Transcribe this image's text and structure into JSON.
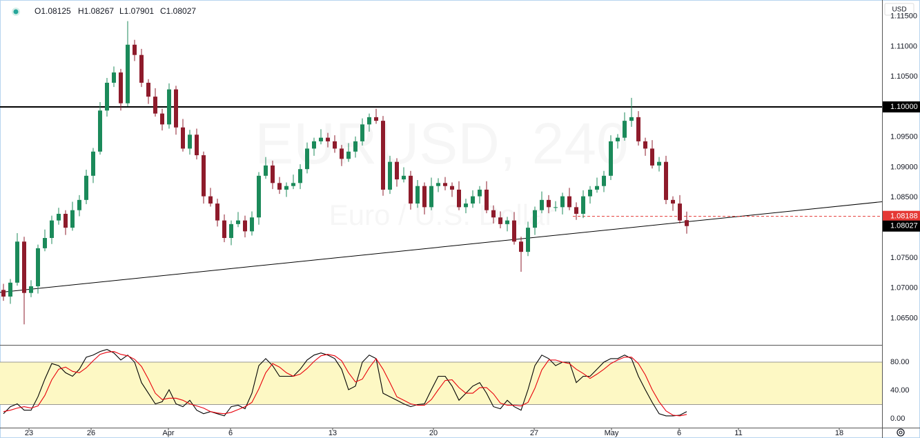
{
  "header": {
    "ohlc": [
      "O1.08125",
      "H1.08267",
      "L1.07901",
      "C1.08027"
    ]
  },
  "axis_currency": "USD",
  "watermark": {
    "symbol": "EURUSD, 240",
    "description": "Euro / U.S. Dollar"
  },
  "chart_data": [
    {
      "type": "candlestick",
      "up_color": "#1b8a5a",
      "down_color": "#8e1b2b",
      "xlim": [
        -0.5,
        127.3
      ],
      "ylim": [
        1.0606,
        1.1177
      ],
      "yticks": [
        {
          "value": 1.065,
          "label": "1.06500"
        },
        {
          "value": 1.07,
          "label": "1.07000"
        },
        {
          "value": 1.075,
          "label": "1.07500"
        },
        {
          "value": 1.08,
          "label": "1.08000"
        },
        {
          "value": 1.085,
          "label": "1.08500"
        },
        {
          "value": 1.09,
          "label": "1.09000"
        },
        {
          "value": 1.095,
          "label": "1.09500"
        },
        {
          "value": 1.1,
          "label": "1.10000"
        },
        {
          "value": 1.105,
          "label": "1.10500"
        },
        {
          "value": 1.11,
          "label": "1.11000"
        },
        {
          "value": 1.115,
          "label": "1.11500"
        }
      ],
      "open": [
        1.0697,
        1.0686,
        1.0709,
        1.0777,
        1.0692,
        1.0703,
        1.0766,
        1.0783,
        1.0812,
        1.0823,
        1.08,
        1.0829,
        1.0846,
        1.0886,
        1.0926,
        1.0994,
        1.104,
        1.1057,
        1.1006,
        1.1103,
        1.1086,
        1.104,
        1.1017,
        1.0989,
        1.0971,
        1.1029,
        1.0966,
        1.0931,
        1.0954,
        1.092,
        1.0852,
        1.084,
        1.0812,
        1.0783,
        1.0806,
        1.0812,
        1.0794,
        1.0817,
        1.0886,
        1.0903,
        1.0874,
        1.0863,
        1.0869,
        1.0874,
        1.0897,
        1.0931,
        1.0943,
        1.0949,
        1.0943,
        1.0931,
        1.0914,
        1.0926,
        1.0943,
        1.0971,
        1.0983,
        1.0977,
        1.0863,
        1.0909,
        1.088,
        1.0886,
        1.084,
        1.0869,
        1.0834,
        1.0869,
        1.0874,
        1.0869,
        1.0863,
        1.0834,
        1.084,
        1.0852,
        1.0863,
        1.0829,
        1.0817,
        1.0806,
        1.0812,
        1.0777,
        1.076,
        1.08,
        1.0829,
        1.0846,
        1.0834,
        1.0834,
        1.0852,
        1.0834,
        1.0823,
        1.0852,
        1.0863,
        1.0869,
        1.0886,
        1.0943,
        1.0949,
        1.0977,
        1.0983,
        1.0943,
        1.0931,
        1.0903,
        1.0909,
        1.0846,
        1.084,
        1.08125
      ],
      "high": [
        1.0707,
        1.0715,
        1.0791,
        1.0785,
        1.0713,
        1.0772,
        1.0797,
        1.082,
        1.0833,
        1.0829,
        1.0843,
        1.0854,
        1.0896,
        1.0932,
        1.1008,
        1.1048,
        1.1067,
        1.1063,
        1.1142,
        1.1111,
        1.1096,
        1.1046,
        1.1031,
        1.0997,
        1.1039,
        1.1035,
        1.098,
        1.0962,
        1.0964,
        1.0926,
        1.0866,
        1.0848,
        1.0822,
        1.0812,
        1.0826,
        1.082,
        1.0827,
        1.0892,
        1.0917,
        1.0911,
        1.0884,
        1.0875,
        1.0888,
        1.0905,
        1.0941,
        1.0949,
        1.0963,
        1.0957,
        1.0953,
        1.0937,
        1.094,
        1.0951,
        1.0981,
        1.0989,
        1.0997,
        1.0985,
        1.0919,
        1.0915,
        1.09,
        1.0894,
        1.0879,
        1.0875,
        1.0883,
        1.0882,
        1.0884,
        1.0875,
        1.0877,
        1.0848,
        1.0862,
        1.0869,
        1.0877,
        1.0837,
        1.0827,
        1.0818,
        1.0826,
        1.0785,
        1.081,
        1.0835,
        1.086,
        1.0854,
        1.0844,
        1.0858,
        1.0866,
        1.0842,
        1.0862,
        1.0869,
        1.0883,
        1.0894,
        1.0953,
        1.0955,
        1.0991,
        1.1015,
        1.0993,
        1.0949,
        1.0945,
        1.0917,
        1.0919,
        1.0852,
        1.0854,
        1.08267
      ],
      "low": [
        1.0679,
        1.0674,
        1.0704,
        1.064,
        1.0685,
        1.0691,
        1.0761,
        1.0773,
        1.0805,
        1.0788,
        1.0795,
        1.0819,
        1.0839,
        1.0874,
        1.0921,
        1.0984,
        1.1033,
        1.0994,
        1.1001,
        1.1076,
        1.1033,
        1.1005,
        1.0984,
        1.0961,
        1.0964,
        1.0954,
        1.0926,
        1.0921,
        1.0913,
        1.084,
        1.0835,
        1.0802,
        1.0776,
        1.0771,
        1.0801,
        1.0784,
        1.0787,
        1.0805,
        1.0881,
        1.0864,
        1.0856,
        1.0851,
        1.0864,
        1.0864,
        1.089,
        1.0919,
        1.0938,
        1.0933,
        1.0924,
        1.0902,
        1.0909,
        1.0916,
        1.0936,
        1.0959,
        1.0972,
        1.0853,
        1.0856,
        1.0868,
        1.0875,
        1.083,
        1.0833,
        1.0822,
        1.0829,
        1.0859,
        1.0862,
        1.0851,
        1.0829,
        1.0824,
        1.0833,
        1.084,
        1.0824,
        1.0807,
        1.0799,
        1.0794,
        1.0772,
        1.0727,
        1.0753,
        1.0788,
        1.0824,
        1.0824,
        1.0827,
        1.0822,
        1.0829,
        1.0813,
        1.0816,
        1.084,
        1.0858,
        1.0859,
        1.0879,
        1.0931,
        1.0944,
        1.0967,
        1.0936,
        1.0919,
        1.0898,
        1.0893,
        1.0839,
        1.0828,
        1.0807,
        1.07901
      ],
      "close": [
        1.0686,
        1.0709,
        1.0777,
        1.0692,
        1.0703,
        1.0766,
        1.0783,
        1.0812,
        1.0823,
        1.08,
        1.0829,
        1.0846,
        1.0886,
        1.0926,
        1.0994,
        1.104,
        1.1057,
        1.1006,
        1.1103,
        1.1086,
        1.104,
        1.1017,
        1.0989,
        1.0971,
        1.1029,
        1.0966,
        1.0931,
        1.0954,
        1.092,
        1.0852,
        1.084,
        1.0812,
        1.0783,
        1.0806,
        1.0812,
        1.0794,
        1.0817,
        1.0886,
        1.0903,
        1.0874,
        1.0863,
        1.0869,
        1.0874,
        1.0897,
        1.0931,
        1.0943,
        1.0949,
        1.0943,
        1.0931,
        1.0914,
        1.0926,
        1.0943,
        1.0971,
        1.0983,
        1.0977,
        1.0863,
        1.0909,
        1.088,
        1.0886,
        1.084,
        1.0869,
        1.0834,
        1.0869,
        1.0874,
        1.0869,
        1.0863,
        1.0834,
        1.084,
        1.0852,
        1.0863,
        1.0829,
        1.0817,
        1.0806,
        1.0812,
        1.0777,
        1.076,
        1.08,
        1.0829,
        1.0846,
        1.0834,
        1.0834,
        1.0852,
        1.0834,
        1.0823,
        1.0852,
        1.0863,
        1.0869,
        1.0886,
        1.0943,
        1.0949,
        1.0977,
        1.0983,
        1.0943,
        1.0931,
        1.0903,
        1.0909,
        1.0846,
        1.084,
        1.0812,
        1.08027
      ],
      "horizontal_line": {
        "value": 1.1,
        "label": "1.10000",
        "color": "#000000"
      },
      "alert_line": {
        "value": 1.08188,
        "start": 82.5,
        "color": "#e53935"
      },
      "trendline_y": [
        1.0693,
        1.0843
      ]
    },
    {
      "type": "line",
      "xlim": [
        -0.5,
        127.3
      ],
      "ylim": [
        -12.7,
        104.4
      ],
      "yticks": [
        {
          "value": 0,
          "label": "0.00"
        },
        {
          "value": 40,
          "label": "40.00"
        },
        {
          "value": 80,
          "label": "80.00"
        }
      ],
      "band": [
        20,
        80
      ],
      "band_color": "#fdf8c4",
      "xticks": [
        {
          "value": 3.7,
          "label": "23"
        },
        {
          "value": 12.7,
          "label": "26"
        },
        {
          "value": 23.9,
          "label": "Apr"
        },
        {
          "value": 32.9,
          "label": "6"
        },
        {
          "value": 47.7,
          "label": "13"
        },
        {
          "value": 62.3,
          "label": "20"
        },
        {
          "value": 76.9,
          "label": "27"
        },
        {
          "value": 88.1,
          "label": "May"
        },
        {
          "value": 97.9,
          "label": "6"
        },
        {
          "value": 106.5,
          "label": "11"
        },
        {
          "value": 121.1,
          "label": "18"
        }
      ],
      "series": [
        {
          "color": "#000000",
          "values": [
            7,
            17,
            21,
            12,
            12,
            31,
            56,
            78,
            75,
            65,
            60,
            70,
            87,
            90,
            95,
            98,
            93,
            83,
            90,
            80,
            51,
            36,
            21,
            24,
            41,
            21,
            17,
            26,
            12,
            7,
            10,
            7,
            4,
            17,
            19,
            14,
            36,
            75,
            85,
            75,
            60,
            60,
            60,
            70,
            83,
            90,
            93,
            90,
            85,
            70,
            41,
            46,
            80,
            90,
            85,
            36,
            31,
            26,
            21,
            17,
            20,
            21,
            41,
            60,
            60,
            46,
            26,
            36,
            46,
            51,
            36,
            17,
            14,
            26,
            17,
            12,
            41,
            75,
            90,
            85,
            75,
            80,
            80,
            51,
            60,
            60,
            70,
            80,
            85,
            85,
            90,
            85,
            60,
            41,
            23,
            7,
            4,
            4,
            5,
            10
          ]
        },
        {
          "color": "#e8000b",
          "values": [
            10,
            12,
            15,
            17,
            15,
            18,
            33,
            55,
            70,
            73,
            67,
            65,
            72,
            82,
            91,
            94,
            95,
            91,
            89,
            84,
            74,
            56,
            36,
            27,
            29,
            29,
            26,
            21,
            18,
            15,
            10,
            8,
            7,
            9,
            13,
            17,
            23,
            42,
            65,
            78,
            73,
            65,
            60,
            63,
            71,
            81,
            89,
            91,
            89,
            82,
            65,
            52,
            56,
            72,
            85,
            70,
            51,
            31,
            26,
            21,
            19,
            19,
            27,
            41,
            54,
            55,
            44,
            36,
            36,
            44,
            44,
            35,
            22,
            19,
            19,
            18,
            23,
            43,
            69,
            83,
            83,
            80,
            78,
            70,
            64,
            57,
            63,
            70,
            78,
            83,
            87,
            87,
            78,
            62,
            41,
            24,
            11,
            5,
            4,
            6
          ]
        }
      ]
    }
  ]
}
